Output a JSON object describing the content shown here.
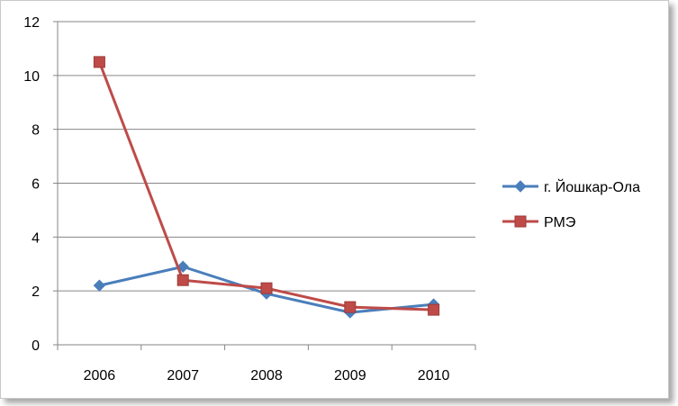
{
  "chart_data": {
    "type": "line",
    "title": "",
    "xlabel": "",
    "ylabel": "",
    "categories": [
      "2006",
      "2007",
      "2008",
      "2009",
      "2010"
    ],
    "ylim": [
      0,
      12
    ],
    "yticks": [
      "0",
      "2",
      "4",
      "6",
      "8",
      "10",
      "12"
    ],
    "grid": true,
    "legend_position": "right",
    "series": [
      {
        "name": "г. Йошкар-Ола",
        "values": [
          2.2,
          2.9,
          1.9,
          1.2,
          1.5
        ],
        "color": "#4a7ebb",
        "marker": "diamond"
      },
      {
        "name": "РМЭ",
        "values": [
          10.5,
          2.4,
          2.1,
          1.4,
          1.3
        ],
        "color": "#be4b48",
        "marker": "square"
      }
    ]
  }
}
